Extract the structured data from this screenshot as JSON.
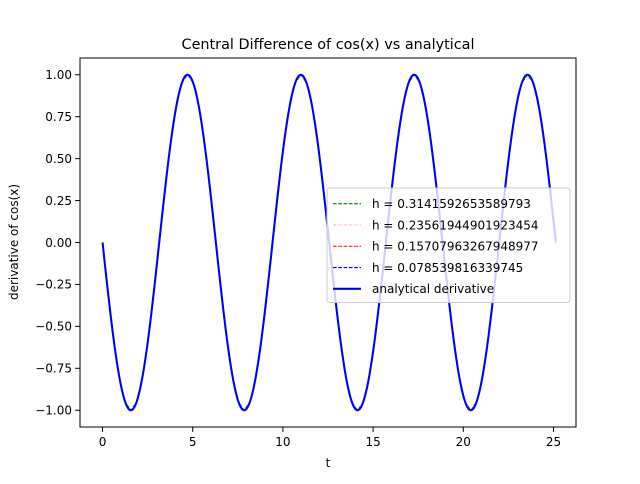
{
  "chart_data": {
    "type": "line",
    "title": "Central Difference of cos(x) vs analytical",
    "xlabel": "t",
    "ylabel": "derivative of cos(x)",
    "xlim": [
      -1.25,
      26.25
    ],
    "ylim": [
      -1.1,
      1.1
    ],
    "xticks": [
      0,
      5,
      10,
      15,
      20,
      25
    ],
    "xtick_labels": [
      "0",
      "5",
      "10",
      "15",
      "20",
      "25"
    ],
    "yticks": [
      -1.0,
      -0.75,
      -0.5,
      -0.25,
      0.0,
      0.25,
      0.5,
      0.75,
      1.0
    ],
    "ytick_labels": [
      "−1.00",
      "−0.75",
      "−0.50",
      "−0.25",
      "0.00",
      "0.25",
      "0.50",
      "0.75",
      "1.00"
    ],
    "grid": false,
    "legend_position": "center-right",
    "x_range": [
      0,
      25.132741228718345
    ],
    "series": [
      {
        "name": "h = 0.3141592653589793",
        "function": "-sin(t)",
        "step": 0.3141592653589793,
        "color": "#008000",
        "linestyle": "dashed",
        "linewidth": 0.8
      },
      {
        "name": "h = 0.23561944901923454",
        "function": "-sin(t)",
        "step": 0.23561944901923454,
        "color": "#ffc0cb",
        "linestyle": "dashed",
        "linewidth": 0.8
      },
      {
        "name": "h = 0.15707963267948977",
        "function": "-sin(t)",
        "step": 0.15707963267948977,
        "color": "#ff0000",
        "linestyle": "dashed",
        "linewidth": 0.8
      },
      {
        "name": "h = 0.078539816339745",
        "function": "-sin(t)",
        "step": 0.078539816339745,
        "color": "#0000ff",
        "linestyle": "dashed",
        "linewidth": 0.8
      },
      {
        "name": "analytical derivative",
        "function": "-sin(t)",
        "step": 0.05,
        "color": "#0000ff",
        "linestyle": "solid",
        "linewidth": 1.5
      }
    ]
  }
}
